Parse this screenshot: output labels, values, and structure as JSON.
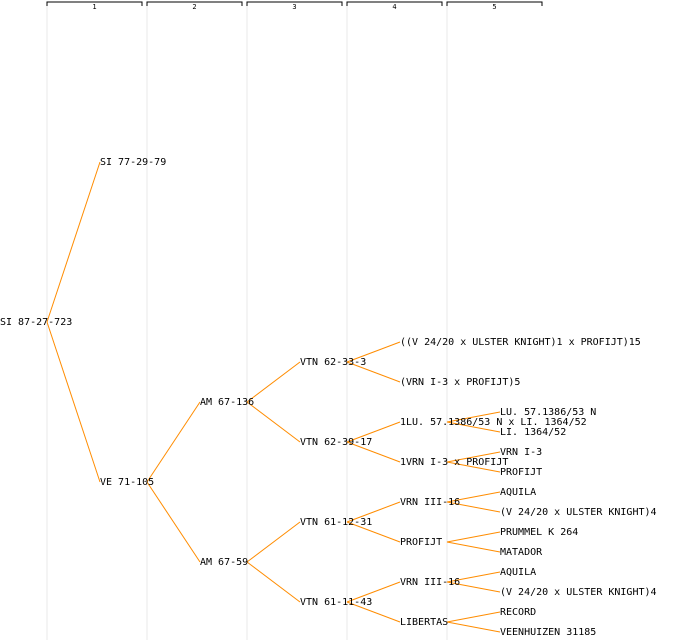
{
  "generations": [
    "1",
    "2",
    "3",
    "4",
    "5"
  ],
  "colors": {
    "edge": "#ff8c00",
    "gridline": "#e8e8e8",
    "text": "#000000"
  },
  "tree": {
    "label": "SI 87-27-723",
    "children": [
      {
        "label": "SI 77-29-79",
        "children": []
      },
      {
        "label": "VE 71-105",
        "children": [
          {
            "label": "AM 67-136",
            "children": [
              {
                "label": "VTN 62-33-3",
                "children": [
                  {
                    "label": "((V 24/20 x ULSTER KNIGHT)1 x PROFIJT)15",
                    "children": []
                  },
                  {
                    "label": "(VRN I-3 x PROFIJT)5",
                    "children": []
                  }
                ]
              },
              {
                "label": "VTN 62-39-17",
                "children": [
                  {
                    "label": "1LU. 57.1386/53 N x LI. 1364/52",
                    "children": [
                      {
                        "label": "LU. 57.1386/53 N",
                        "children": []
                      },
                      {
                        "label": "LI. 1364/52",
                        "children": []
                      }
                    ]
                  },
                  {
                    "label": "1VRN I-3 x PROFIJT",
                    "children": [
                      {
                        "label": "VRN I-3",
                        "children": []
                      },
                      {
                        "label": "PROFIJT",
                        "children": []
                      }
                    ]
                  }
                ]
              }
            ]
          },
          {
            "label": "AM 67-59",
            "children": [
              {
                "label": "VTN 61-12-31",
                "children": [
                  {
                    "label": "VRN III-16",
                    "children": [
                      {
                        "label": "AQUILA",
                        "children": []
                      },
                      {
                        "label": "(V 24/20 x ULSTER KNIGHT)4",
                        "children": []
                      }
                    ]
                  },
                  {
                    "label": "PROFIJT",
                    "children": [
                      {
                        "label": "PRUMMEL K 264",
                        "children": []
                      },
                      {
                        "label": "MATADOR",
                        "children": []
                      }
                    ]
                  }
                ]
              },
              {
                "label": "VTN 61-11-43",
                "children": [
                  {
                    "label": "VRN III-16",
                    "children": [
                      {
                        "label": "AQUILA",
                        "children": []
                      },
                      {
                        "label": "(V 24/20 x ULSTER KNIGHT)4",
                        "children": []
                      }
                    ]
                  },
                  {
                    "label": "LIBERTAS",
                    "children": [
                      {
                        "label": "RECORD",
                        "children": []
                      },
                      {
                        "label": "VEENHUIZEN 31185",
                        "children": []
                      }
                    ]
                  }
                ]
              }
            ]
          }
        ]
      }
    ]
  }
}
